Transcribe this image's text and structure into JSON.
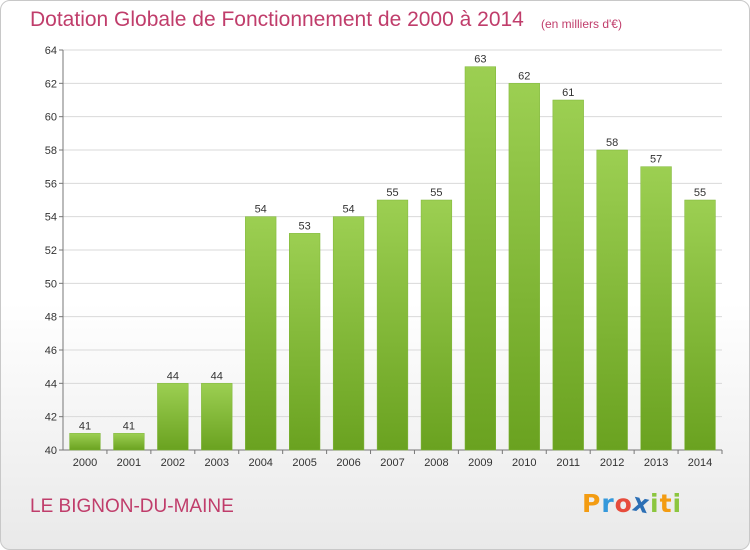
{
  "chart_data": {
    "type": "bar",
    "title": "Dotation Globale de Fonctionnement de 2000 à 2014",
    "unit_label": "(en milliers d'€)",
    "categories": [
      "2000",
      "2001",
      "2002",
      "2003",
      "2004",
      "2005",
      "2006",
      "2007",
      "2008",
      "2009",
      "2010",
      "2011",
      "2012",
      "2013",
      "2014"
    ],
    "values": [
      41,
      41,
      44,
      44,
      54,
      53,
      54,
      55,
      55,
      63,
      62,
      61,
      58,
      57,
      55
    ],
    "ylim": [
      40,
      64
    ],
    "yticks": [
      40,
      42,
      44,
      46,
      48,
      50,
      52,
      54,
      56,
      58,
      60,
      62,
      64
    ],
    "grid": true,
    "bar_color": "#8cc63f",
    "bar_color_dark": "#6aa220"
  },
  "footer": {
    "place": "LE BIGNON-DU-MAINE",
    "logo_letters": [
      "P",
      "r",
      "o",
      "x",
      "i",
      "t",
      "i"
    ],
    "logo_colors": [
      "#f39c12",
      "#3498db",
      "#e74c3c",
      "#2c6fb5",
      "#8cc63f",
      "#f39c12",
      "#8cc63f"
    ]
  }
}
